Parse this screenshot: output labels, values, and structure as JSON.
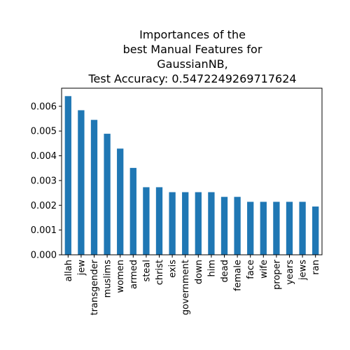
{
  "chart_data": {
    "type": "bar",
    "title_lines": [
      "Importances of the",
      "best Manual Features for",
      "GaussianNB,",
      "Test Accuracy: 0.5472249269717624"
    ],
    "xlabel": "",
    "ylabel": "",
    "categories": [
      "allah",
      "jew",
      "transgender",
      "muslims",
      "women",
      "armed",
      "steal",
      "christ",
      "exis",
      "government",
      "down",
      "him",
      "dead",
      "female",
      "face",
      "wife",
      "proper",
      "years",
      "jews",
      "ran"
    ],
    "values": [
      0.00641,
      0.00584,
      0.00545,
      0.00489,
      0.00429,
      0.00351,
      0.00273,
      0.00273,
      0.00253,
      0.00253,
      0.00253,
      0.00253,
      0.00234,
      0.00234,
      0.00214,
      0.00214,
      0.00214,
      0.00214,
      0.00214,
      0.00195
    ],
    "yticks": [
      "0.000",
      "0.001",
      "0.002",
      "0.003",
      "0.004",
      "0.005",
      "0.006"
    ],
    "ylim": [
      0,
      0.00673
    ],
    "grid": false,
    "legend": "none",
    "bar_color": "#1f77b4"
  }
}
